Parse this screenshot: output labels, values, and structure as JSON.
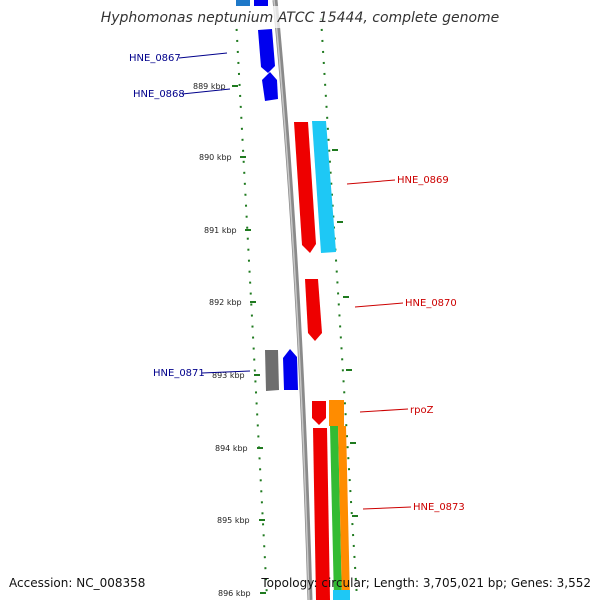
{
  "title": "Hyphomonas neptunium ATCC 15444, complete genome",
  "footer": {
    "accession": "Accession: NC_008358",
    "topology": "Topology: circular; Length: 3,705,021 bp; Genes: 3,552"
  },
  "colors": {
    "backbone": "#8a8a8a",
    "tick": "#1f7a1f",
    "minus_label": "#00008b",
    "plus_label": "#cc0000",
    "blue_gene": "#0000ee",
    "red_gene": "#ee0000",
    "cyan_gene": "#1ec8f5",
    "gray_gene": "#6e6e6e",
    "orange_gene": "#ff8c00",
    "green_gene": "#33bb33"
  },
  "ticks": [
    {
      "label": "889 kbp"
    },
    {
      "label": "890 kbp"
    },
    {
      "label": "891 kbp"
    },
    {
      "label": "892 kbp"
    },
    {
      "label": "893 kbp"
    },
    {
      "label": "894 kbp"
    },
    {
      "label": "895 kbp"
    },
    {
      "label": "896 kbp"
    }
  ],
  "gene_labels": [
    {
      "text": "HNE_0867",
      "strand": "minus"
    },
    {
      "text": "HNE_0868",
      "strand": "minus"
    },
    {
      "text": "HNE_0869",
      "strand": "plus"
    },
    {
      "text": "HNE_0870",
      "strand": "plus"
    },
    {
      "text": "HNE_0871",
      "strand": "minus"
    },
    {
      "text": "rpoZ",
      "strand": "plus"
    },
    {
      "text": "HNE_0873",
      "strand": "plus"
    }
  ]
}
